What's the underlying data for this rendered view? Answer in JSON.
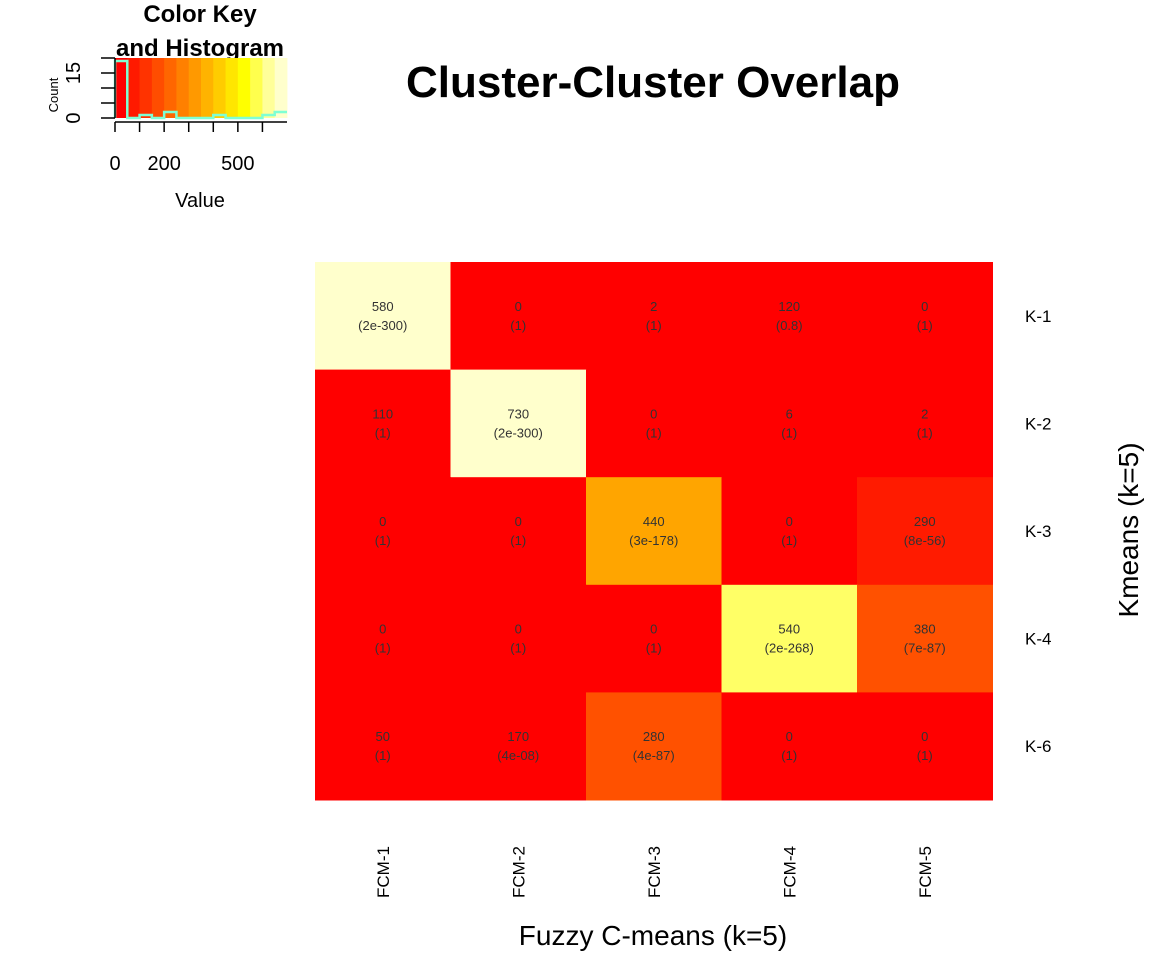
{
  "chart_data": [
    {
      "type": "heatmap",
      "title": "Cluster-Cluster Overlap",
      "xlabel": "Fuzzy C-means (k=5)",
      "ylabel": "Kmeans (k=5)",
      "columns": [
        "FCM-1",
        "FCM-2",
        "FCM-3",
        "FCM-4",
        "FCM-5"
      ],
      "rows": [
        "K-1",
        "K-2",
        "K-3",
        "K-4",
        "K-6"
      ],
      "values": [
        [
          580,
          0,
          2,
          120,
          0
        ],
        [
          110,
          730,
          0,
          6,
          2
        ],
        [
          0,
          0,
          440,
          0,
          290
        ],
        [
          0,
          0,
          0,
          540,
          380
        ],
        [
          50,
          170,
          280,
          0,
          0
        ]
      ],
      "p_values": [
        [
          "(2e-300)",
          "(1)",
          "(1)",
          "(0.8)",
          "(1)"
        ],
        [
          "(1)",
          "(2e-300)",
          "(1)",
          "(1)",
          "(1)"
        ],
        [
          "(1)",
          "(1)",
          "(3e-178)",
          "(1)",
          "(8e-56)"
        ],
        [
          "(1)",
          "(1)",
          "(1)",
          "(2e-268)",
          "(7e-87)"
        ],
        [
          "(1)",
          "(4e-08)",
          "(4e-87)",
          "(1)",
          "(1)"
        ]
      ],
      "fill_level": [
        [
          1.0,
          0.0,
          0.0,
          0.0,
          0.0
        ],
        [
          0.0,
          1.0,
          0.0,
          0.0,
          0.0
        ],
        [
          0.0,
          0.0,
          0.55,
          0.0,
          0.09
        ],
        [
          0.0,
          0.0,
          0.0,
          0.87,
          0.27
        ],
        [
          0.0,
          0.0,
          0.27,
          0.0,
          0.0
        ]
      ],
      "colors": {
        "low": "#ff0000",
        "mid": "#ffa500",
        "high_yellow": "#ffff66",
        "top": "#ffffcc"
      }
    },
    {
      "type": "bar",
      "title_lines": [
        "Color Key",
        "and Histogram"
      ],
      "xlabel": "Value",
      "ylabel": "Count",
      "xticks": [
        "0",
        "200",
        "500"
      ],
      "xtick_values": [
        0,
        200,
        500
      ],
      "yticks": [
        "0",
        "15"
      ],
      "ytick_values": [
        0,
        15
      ],
      "xlim": [
        0,
        700
      ],
      "ylim": [
        0,
        20
      ],
      "key_colors": [
        "#ff0000",
        "#ff1a00",
        "#ff3300",
        "#ff4d00",
        "#ff6600",
        "#ff8000",
        "#ff9900",
        "#ffb300",
        "#ffcc00",
        "#ffe600",
        "#ffff00",
        "#ffff4d",
        "#ffff99",
        "#ffffcc"
      ],
      "histogram": [
        {
          "x": 0,
          "count": 19
        },
        {
          "x": 50,
          "count": 0
        },
        {
          "x": 100,
          "count": 1
        },
        {
          "x": 150,
          "count": 0
        },
        {
          "x": 200,
          "count": 2
        },
        {
          "x": 250,
          "count": 0
        },
        {
          "x": 300,
          "count": 0
        },
        {
          "x": 350,
          "count": 0
        },
        {
          "x": 400,
          "count": 1
        },
        {
          "x": 450,
          "count": 0
        },
        {
          "x": 500,
          "count": 0
        },
        {
          "x": 550,
          "count": 0
        },
        {
          "x": 600,
          "count": 1
        },
        {
          "x": 650,
          "count": 2
        }
      ],
      "histogram_color": "#7fffd4"
    }
  ]
}
